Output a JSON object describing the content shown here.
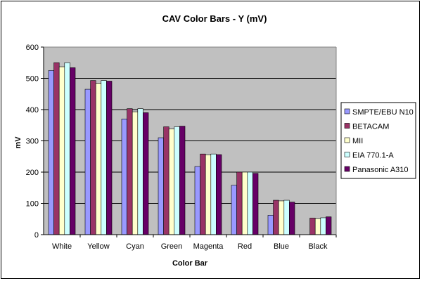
{
  "chart_data": {
    "type": "bar",
    "title": "CAV Color Bars - Y (mV)",
    "xlabel": "Color Bar",
    "ylabel": "mV",
    "ylim": [
      0,
      600
    ],
    "yticks": [
      0,
      100,
      200,
      300,
      400,
      500,
      600
    ],
    "grid": true,
    "legend_position": "right",
    "categories": [
      "White",
      "Yellow",
      "Cyan",
      "Green",
      "Magenta",
      "Red",
      "Blue",
      "Black"
    ],
    "series": [
      {
        "name": "SMPTE/EBU N10",
        "color": "#9999ff",
        "values": [
          525,
          465,
          370,
          310,
          218,
          158,
          62,
          0
        ]
      },
      {
        "name": "BETACAM",
        "color": "#993366",
        "values": [
          550,
          493,
          403,
          345,
          258,
          200,
          110,
          53
        ]
      },
      {
        "name": "MII",
        "color": "#ffffcc",
        "values": [
          537,
          484,
          393,
          338,
          255,
          200,
          108,
          51
        ]
      },
      {
        "name": "EIA 770.1-A",
        "color": "#ccffff",
        "values": [
          550,
          493,
          403,
          345,
          258,
          200,
          110,
          54
        ]
      },
      {
        "name": "Panasonic A310",
        "color": "#660066",
        "values": [
          534,
          491,
          390,
          347,
          256,
          196,
          104,
          57
        ]
      }
    ],
    "plot_background": "#c0c0c0"
  }
}
